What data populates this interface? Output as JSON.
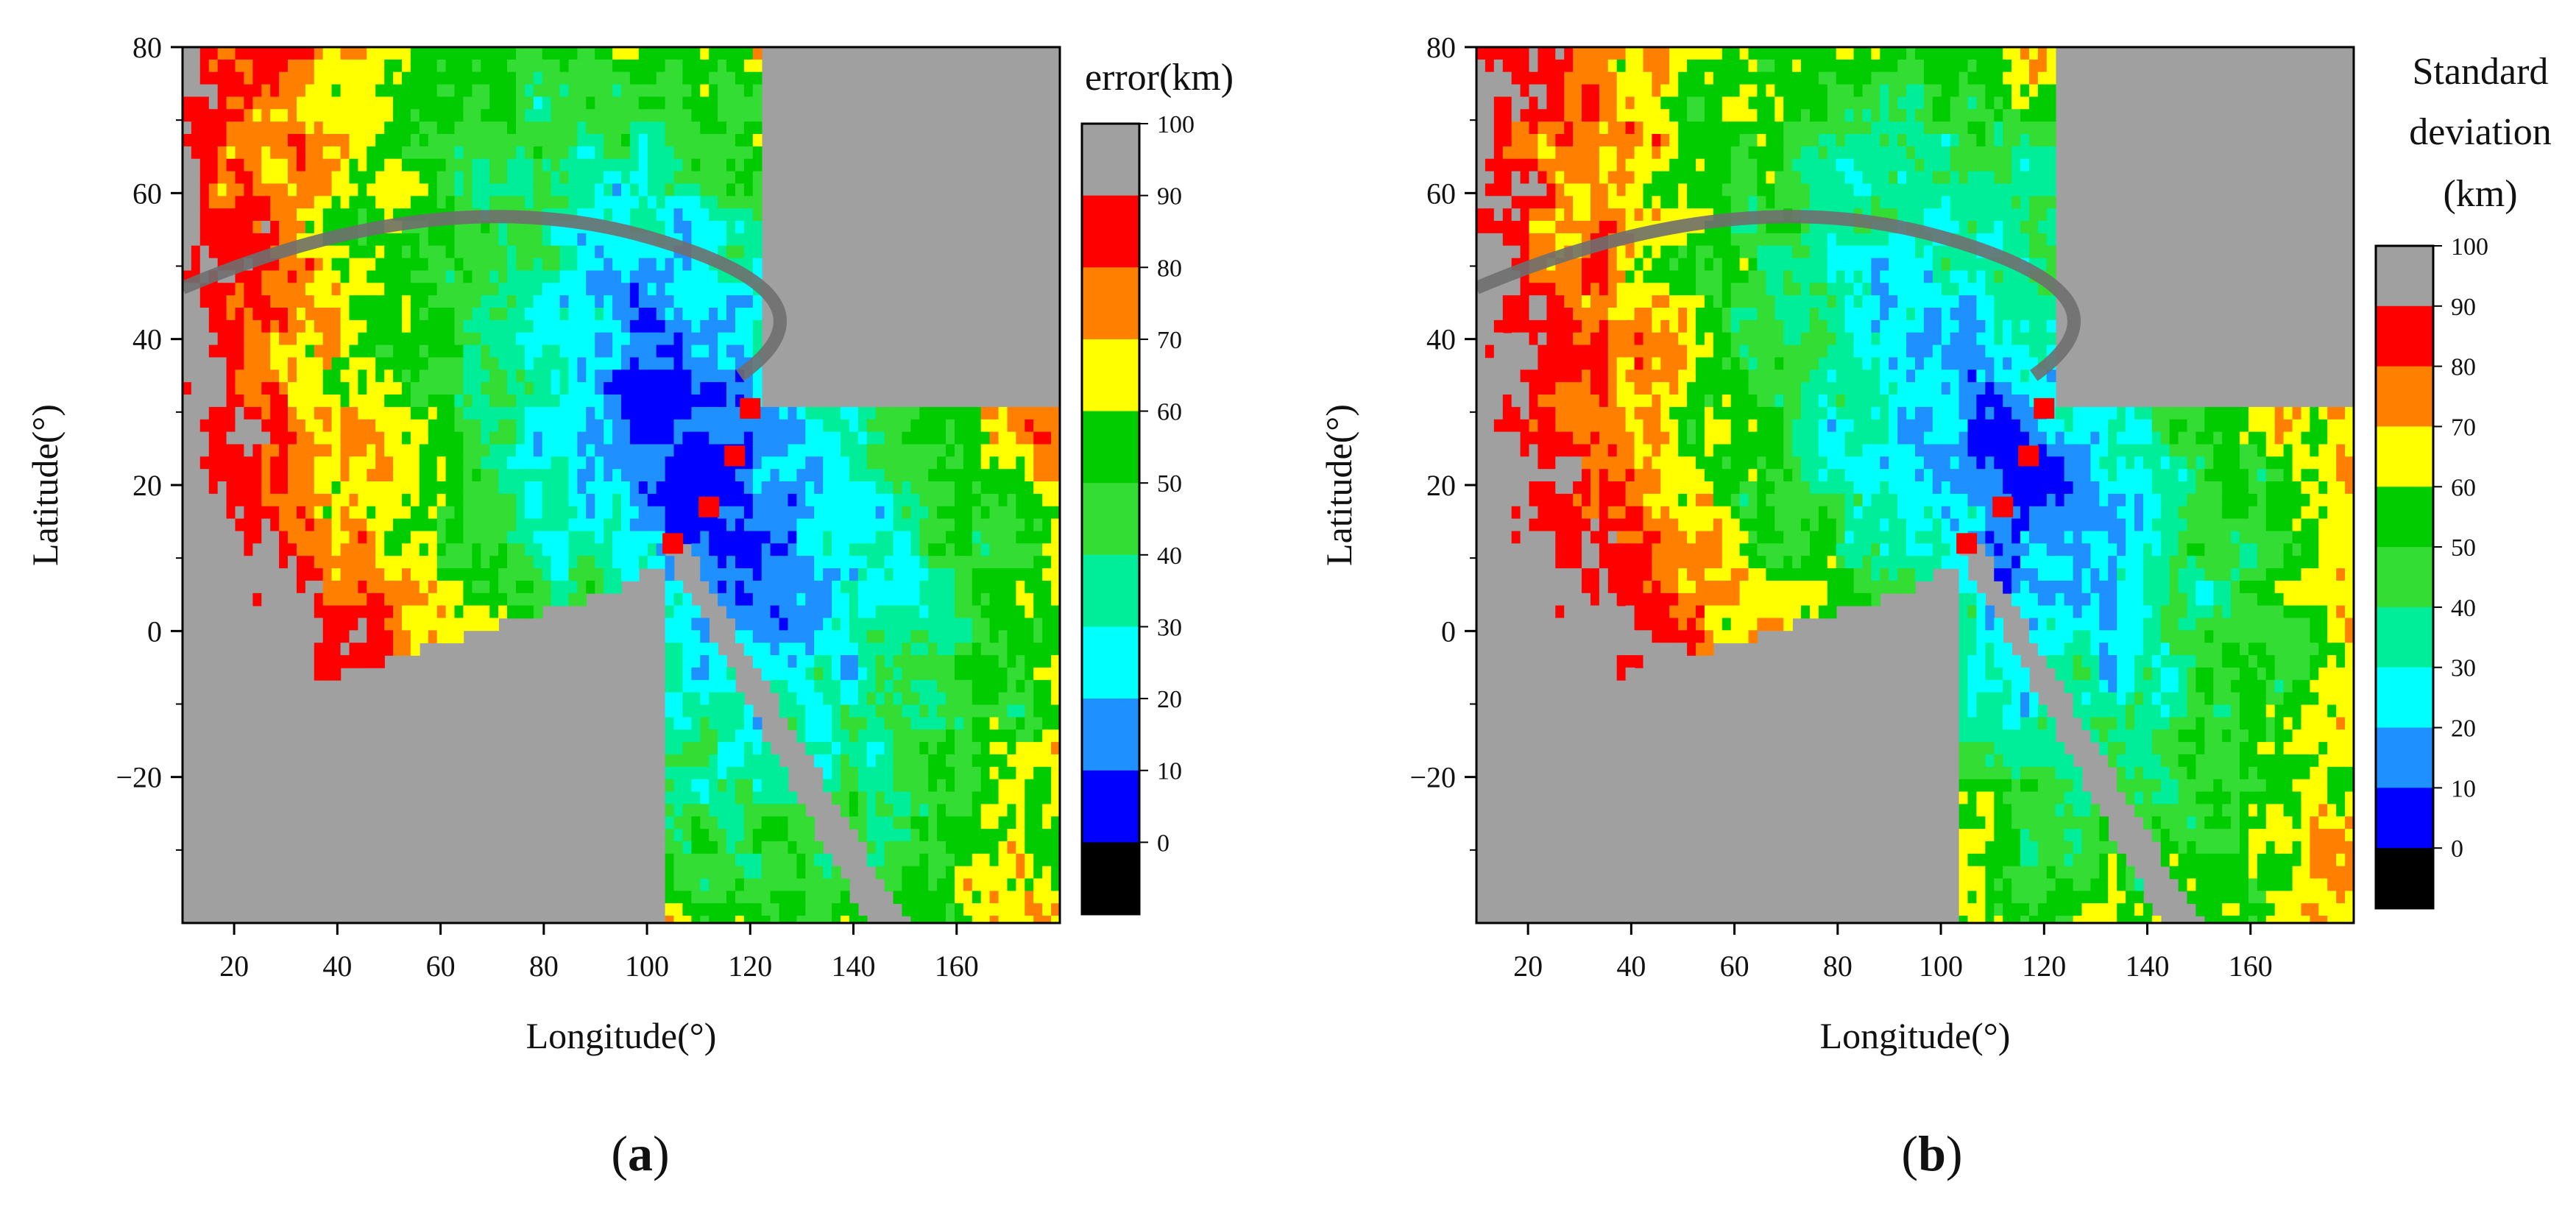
{
  "chart_data": [
    {
      "type": "heatmap",
      "panel_label": "a",
      "xlabel": "Longitude(°)",
      "ylabel": "Latitude(°)",
      "xlim": [
        10,
        180
      ],
      "ylim": [
        -40,
        80
      ],
      "xticks": [
        20,
        40,
        60,
        80,
        100,
        120,
        140,
        160
      ],
      "yticks": [
        -20,
        0,
        20,
        40,
        60,
        80
      ],
      "colorbar": {
        "title_lines": [
          "error(km)"
        ],
        "levels": [
          0,
          10,
          20,
          30,
          40,
          50,
          60,
          70,
          80,
          90,
          100
        ],
        "colors": [
          "#000000",
          "#0000ff",
          "#1e90ff",
          "#00ffff",
          "#00ee99",
          "#33dd33",
          "#00cc00",
          "#ffff00",
          "#ff8000",
          "#ff0000",
          "#a0a0a0"
        ]
      },
      "stations": [
        {
          "lon": 105,
          "lat": 12
        },
        {
          "lon": 112,
          "lat": 17
        },
        {
          "lon": 117,
          "lat": 24
        },
        {
          "lon": 120,
          "lat": 30.5
        }
      ]
    },
    {
      "type": "heatmap",
      "panel_label": "b",
      "xlabel": "Longitude(°)",
      "ylabel": "Latitude(°)",
      "xlim": [
        10,
        180
      ],
      "ylim": [
        -40,
        80
      ],
      "xticks": [
        20,
        40,
        60,
        80,
        100,
        120,
        140,
        160
      ],
      "yticks": [
        -20,
        0,
        20,
        40,
        60,
        80
      ],
      "colorbar": {
        "title_lines": [
          "Standard",
          "deviation",
          "(km)"
        ],
        "levels": [
          0,
          10,
          20,
          30,
          40,
          50,
          60,
          70,
          80,
          90,
          100
        ],
        "colors": [
          "#000000",
          "#0000ff",
          "#1e90ff",
          "#00ffff",
          "#00ee99",
          "#33dd33",
          "#00cc00",
          "#ffff00",
          "#ff8000",
          "#ff0000",
          "#a0a0a0"
        ]
      },
      "stations": [
        {
          "lon": 105,
          "lat": 12
        },
        {
          "lon": 112,
          "lat": 17
        },
        {
          "lon": 117,
          "lat": 24
        },
        {
          "lon": 120,
          "lat": 30.5
        }
      ]
    }
  ]
}
